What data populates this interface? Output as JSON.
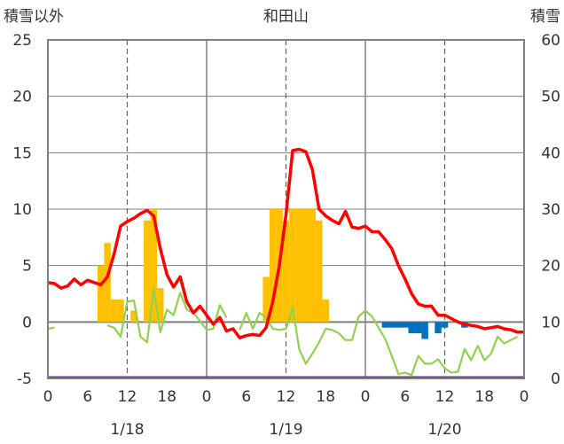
{
  "chart_data": {
    "type": "bar+line",
    "title": "和田山",
    "left_axis_label": "積雪以外",
    "right_axis_label": "積雪",
    "left_ylim": [
      -5,
      25
    ],
    "right_ylim": [
      0,
      60
    ],
    "left_ticks": [
      "-5",
      "0",
      "5",
      "10",
      "15",
      "20",
      "25"
    ],
    "right_ticks": [
      "0",
      "10",
      "20",
      "30",
      "40",
      "50",
      "60"
    ],
    "x_range_hours": [
      0,
      72
    ],
    "x_ticks": [
      "0",
      "6",
      "12",
      "18",
      "0",
      "6",
      "12",
      "18",
      "0",
      "6",
      "12",
      "18",
      "0"
    ],
    "date_labels": [
      {
        "text": "1/18",
        "hour": 12
      },
      {
        "text": "1/19",
        "hour": 36
      },
      {
        "text": "1/20",
        "hour": 60
      }
    ],
    "grid": {
      "vertical_solid_hours": [
        24,
        48
      ],
      "vertical_dashed_hours": [
        12,
        36,
        60
      ]
    },
    "colors": {
      "snow_bar": "#FFC000",
      "negative_bar": "#0070C0",
      "red_line": "#FF0000",
      "green_line": "#92D050",
      "baseline": "#7030A0",
      "grid": "#808080"
    },
    "bars": [
      {
        "hour": 8,
        "value": 5
      },
      {
        "hour": 9,
        "value": 7
      },
      {
        "hour": 10,
        "value": 2
      },
      {
        "hour": 11,
        "value": 2
      },
      {
        "hour": 13,
        "value": 1
      },
      {
        "hour": 15,
        "value": 9
      },
      {
        "hour": 16,
        "value": 10
      },
      {
        "hour": 17,
        "value": 3
      },
      {
        "hour": 33,
        "value": 4
      },
      {
        "hour": 34,
        "value": 10
      },
      {
        "hour": 35,
        "value": 10
      },
      {
        "hour": 36,
        "value": 9
      },
      {
        "hour": 37,
        "value": 10
      },
      {
        "hour": 38,
        "value": 10
      },
      {
        "hour": 39,
        "value": 10
      },
      {
        "hour": 40,
        "value": 10
      },
      {
        "hour": 41,
        "value": 9
      },
      {
        "hour": 42,
        "value": 2
      },
      {
        "hour": 51,
        "value": -0.5
      },
      {
        "hour": 52,
        "value": -0.5
      },
      {
        "hour": 53,
        "value": -0.5
      },
      {
        "hour": 54,
        "value": -0.5
      },
      {
        "hour": 55,
        "value": -1
      },
      {
        "hour": 56,
        "value": -1
      },
      {
        "hour": 57,
        "value": -1.5
      },
      {
        "hour": 59,
        "value": -1
      },
      {
        "hour": 60,
        "value": -0.5
      },
      {
        "hour": 63,
        "value": -0.5
      }
    ],
    "red_series": [
      [
        0,
        3.5
      ],
      [
        1,
        3.4
      ],
      [
        2,
        3.0
      ],
      [
        3,
        3.2
      ],
      [
        4,
        3.8
      ],
      [
        5,
        3.3
      ],
      [
        6,
        3.7
      ],
      [
        7,
        3.5
      ],
      [
        8,
        3.3
      ],
      [
        9,
        4.0
      ],
      [
        10,
        6.0
      ],
      [
        11,
        8.5
      ],
      [
        12,
        8.9
      ],
      [
        13,
        9.2
      ],
      [
        14,
        9.6
      ],
      [
        15,
        9.9
      ],
      [
        16,
        9.4
      ],
      [
        17,
        6.5
      ],
      [
        18,
        4.2
      ],
      [
        19,
        3.1
      ],
      [
        20,
        4.0
      ],
      [
        21,
        1.8
      ],
      [
        22,
        0.8
      ],
      [
        23,
        1.4
      ],
      [
        24,
        0.6
      ],
      [
        25,
        -0.2
      ],
      [
        26,
        0.4
      ],
      [
        27,
        -0.8
      ],
      [
        28,
        -0.6
      ],
      [
        29,
        -1.4
      ],
      [
        30,
        -1.2
      ],
      [
        31,
        -1.1
      ],
      [
        32,
        -1.2
      ],
      [
        33,
        -0.5
      ],
      [
        34,
        1.8
      ],
      [
        35,
        5.0
      ],
      [
        36,
        9.5
      ],
      [
        37,
        15.2
      ],
      [
        38,
        15.3
      ],
      [
        39,
        15.1
      ],
      [
        40,
        13.5
      ],
      [
        41,
        10.0
      ],
      [
        42,
        9.4
      ],
      [
        43,
        9.0
      ],
      [
        44,
        8.7
      ],
      [
        45,
        9.8
      ],
      [
        46,
        8.4
      ],
      [
        47,
        8.3
      ],
      [
        48,
        8.5
      ],
      [
        49,
        8.0
      ],
      [
        50,
        8.0
      ],
      [
        51,
        7.3
      ],
      [
        52,
        6.5
      ],
      [
        53,
        5.0
      ],
      [
        54,
        3.8
      ],
      [
        55,
        2.5
      ],
      [
        56,
        1.6
      ],
      [
        57,
        1.4
      ],
      [
        58,
        1.4
      ],
      [
        59,
        0.6
      ],
      [
        60,
        0.6
      ],
      [
        61,
        0.3
      ],
      [
        62,
        0.0
      ],
      [
        63,
        -0.2
      ],
      [
        64,
        -0.3
      ],
      [
        65,
        -0.4
      ],
      [
        66,
        -0.6
      ],
      [
        67,
        -0.5
      ],
      [
        68,
        -0.4
      ],
      [
        69,
        -0.6
      ],
      [
        70,
        -0.7
      ],
      [
        71,
        -0.9
      ],
      [
        72,
        -0.9
      ]
    ],
    "green_segments": [
      [
        [
          0,
          -0.6
        ],
        [
          1,
          -0.5
        ]
      ],
      [
        [
          9,
          -0.3
        ],
        [
          10,
          -0.5
        ],
        [
          11,
          -1.3
        ],
        [
          12,
          1.8
        ],
        [
          13,
          1.9
        ],
        [
          14,
          -1.3
        ],
        [
          15,
          -1.8
        ],
        [
          16,
          2.9
        ],
        [
          17,
          -0.9
        ],
        [
          18,
          1.1
        ],
        [
          19,
          0.6
        ],
        [
          20,
          2.6
        ],
        [
          21,
          1.1
        ],
        [
          22,
          0.8
        ],
        [
          23,
          0.1
        ],
        [
          24,
          -0.7
        ],
        [
          25,
          -0.6
        ],
        [
          26,
          1.5
        ],
        [
          27,
          0.4
        ]
      ],
      [
        [
          29,
          -0.7
        ],
        [
          30,
          0.8
        ],
        [
          31,
          -0.6
        ],
        [
          32,
          0.8
        ],
        [
          33,
          0.4
        ],
        [
          34,
          -0.6
        ],
        [
          35,
          -0.7
        ],
        [
          36,
          -0.6
        ],
        [
          37,
          1.3
        ],
        [
          38,
          -2.4
        ],
        [
          39,
          -3.7
        ],
        [
          40,
          -2.8
        ],
        [
          41,
          -1.8
        ],
        [
          42,
          -0.6
        ],
        [
          43,
          -0.7
        ],
        [
          44,
          -1.0
        ],
        [
          45,
          -1.6
        ],
        [
          46,
          -1.6
        ],
        [
          47,
          0.5
        ],
        [
          48,
          1.0
        ],
        [
          49,
          0.5
        ],
        [
          50,
          -0.5
        ],
        [
          51,
          -1.5
        ],
        [
          52,
          -3.0
        ],
        [
          53,
          -4.6
        ],
        [
          54,
          -4.5
        ],
        [
          55,
          -4.7
        ],
        [
          56,
          -3.0
        ],
        [
          57,
          -3.7
        ],
        [
          58,
          -3.7
        ],
        [
          59,
          -3.3
        ],
        [
          60,
          -4.1
        ],
        [
          61,
          -4.5
        ],
        [
          62,
          -4.4
        ],
        [
          63,
          -2.4
        ],
        [
          64,
          -3.4
        ],
        [
          65,
          -2.1
        ],
        [
          66,
          -3.4
        ],
        [
          67,
          -2.8
        ],
        [
          68,
          -1.3
        ],
        [
          69,
          -1.9
        ],
        [
          70,
          -1.6
        ],
        [
          71,
          -1.3
        ]
      ]
    ]
  }
}
